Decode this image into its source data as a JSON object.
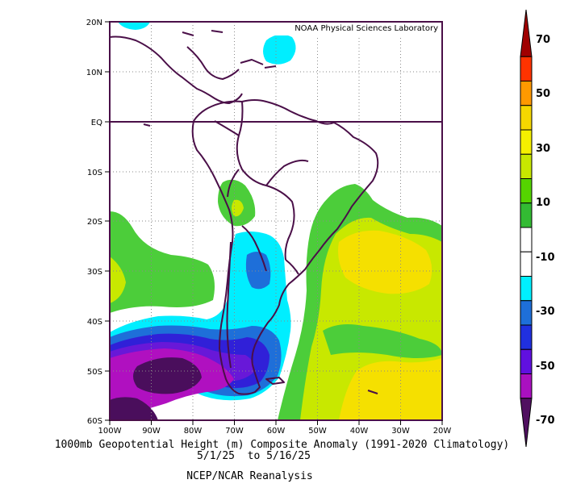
{
  "credit": "NOAA Physical Sciences Laboratory",
  "title_line1": "1000mb Geopotential Height (m) Composite Anomaly (1991-2020 Climatology)",
  "title_line2": "5/1/25  to 5/16/25",
  "source": "NCEP/NCAR Reanalysis",
  "lat_labels": [
    "20N",
    "10N",
    "EQ",
    "10S",
    "20S",
    "30S",
    "40S",
    "50S",
    "60S"
  ],
  "lon_labels": [
    "100W",
    "90W",
    "80W",
    "70W",
    "60W",
    "50W",
    "40W",
    "30W",
    "20W"
  ],
  "colorbar": {
    "labels": [
      "70",
      "50",
      "30",
      "10",
      "-10",
      "-30",
      "-50",
      "-70"
    ],
    "colors": [
      "#a00000",
      "#ff3300",
      "#ff9900",
      "#f5d800",
      "#f5f000",
      "#c8e800",
      "#55d400",
      "#33bb33",
      "#ffffff",
      "#ffffff",
      "#00f0ff",
      "#1e6fd9",
      "#2030e0",
      "#6010e0",
      "#aa10c0",
      "#501060"
    ]
  },
  "anomaly_colors": {
    "green": "#4ccd3a",
    "yellow_green": "#c8e800",
    "yellow": "#f5e000",
    "cyan": "#00eeff",
    "blue": "#1e6fd9",
    "indigo": "#3020d8",
    "violet": "#6818d8",
    "magenta": "#b010c0",
    "dark_purple": "#4a0e5c"
  }
}
